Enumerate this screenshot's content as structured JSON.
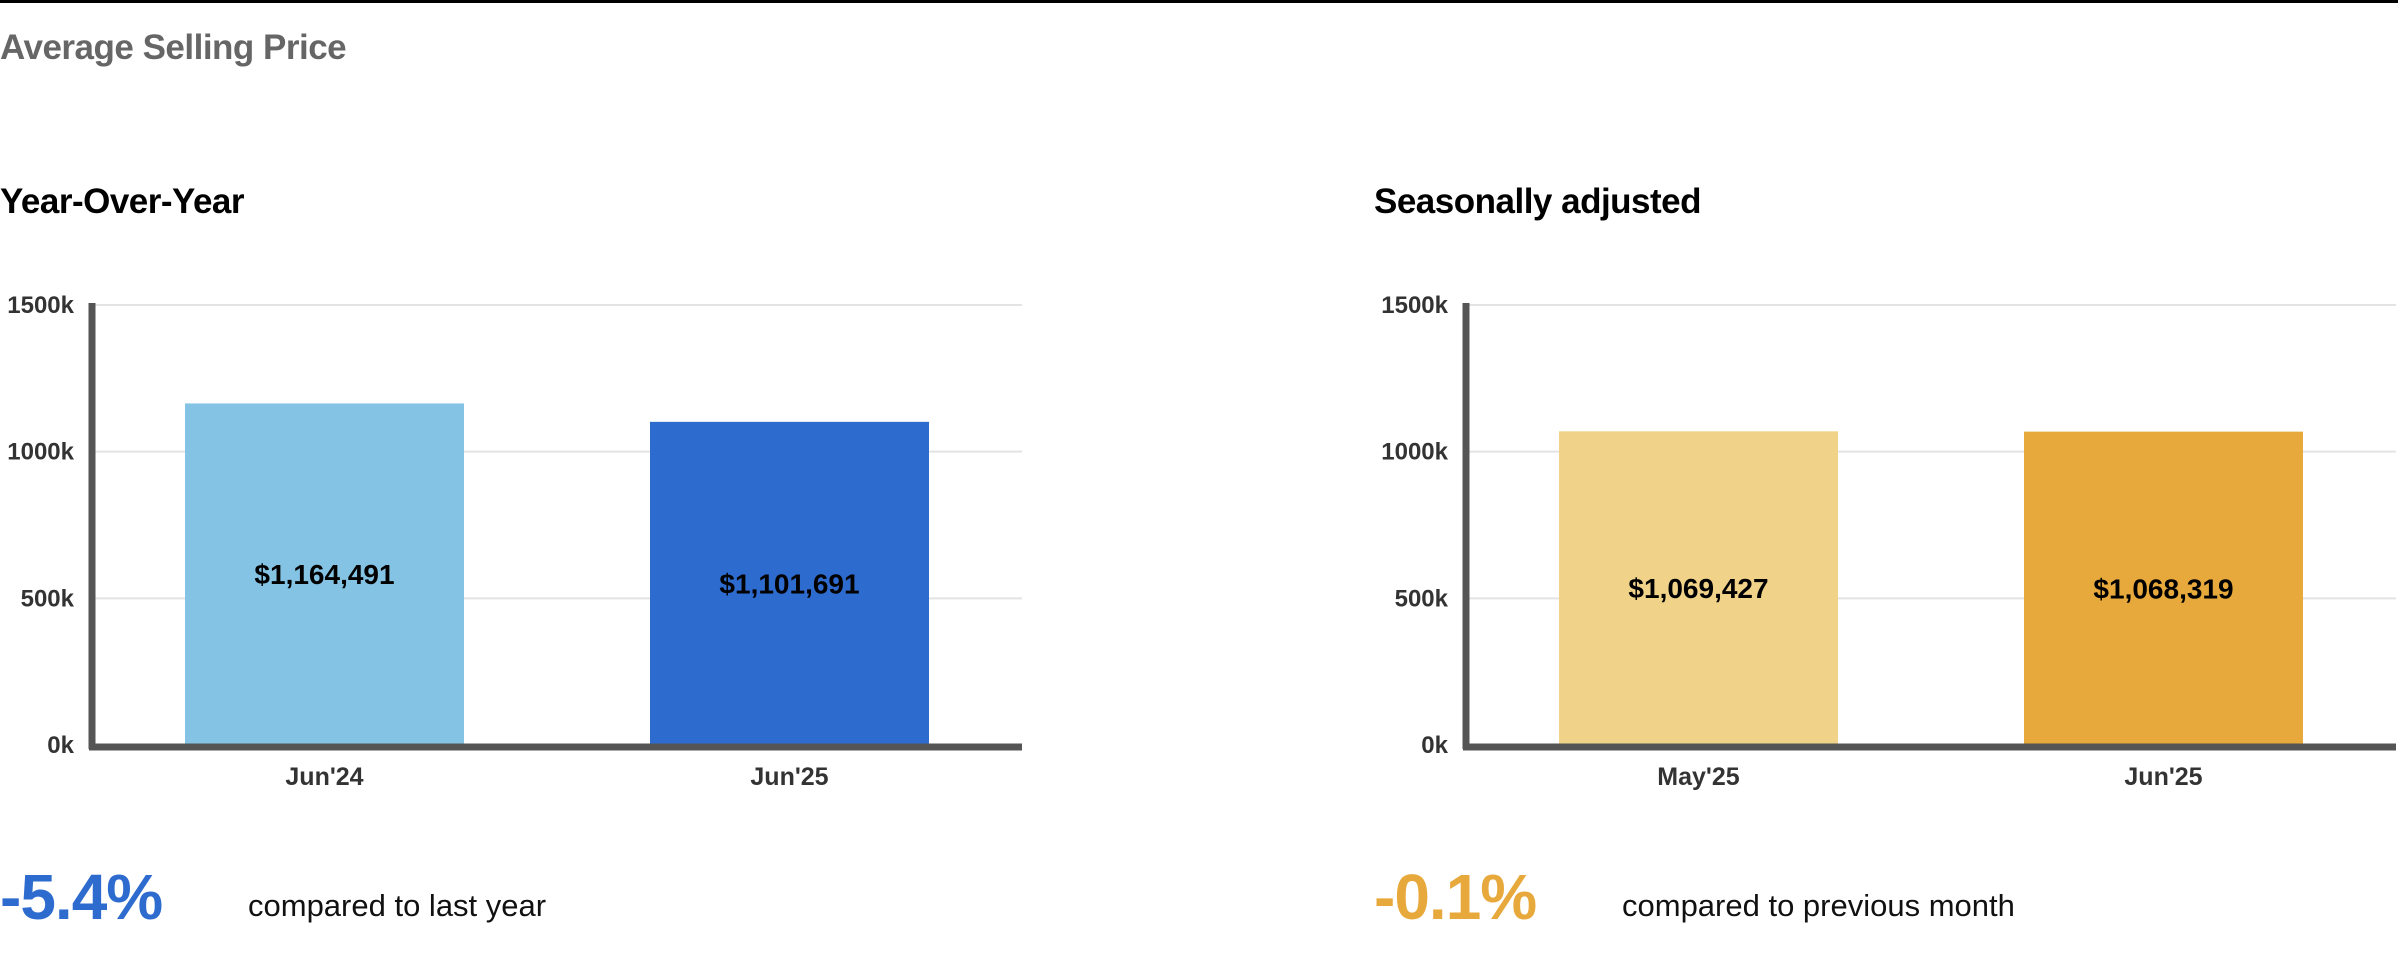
{
  "page_title": "Average Selling Price",
  "panels": [
    {
      "title": "Year-Over-Year",
      "summary": {
        "percent": "-5.4%",
        "text": "compared to last year",
        "color": "#2E6BCF"
      }
    },
    {
      "title": "Seasonally adjusted",
      "summary": {
        "percent": "-0.1%",
        "text": "compared to previous month",
        "color": "#E8A93C"
      }
    }
  ],
  "chart_data": [
    {
      "type": "bar",
      "title": "Year-Over-Year",
      "categories": [
        "Jun'24",
        "Jun'25"
      ],
      "values": [
        1164491,
        1101691
      ],
      "data_labels": [
        "$1,164,491",
        "$1,101,691"
      ],
      "colors": [
        "#85C3E5",
        "#2E6BCF"
      ],
      "ylim": [
        0,
        1500000
      ],
      "yticks": [
        0,
        500000,
        1000000,
        1500000
      ],
      "ytick_labels": [
        "0k",
        "500k",
        "1000k",
        "1500k"
      ],
      "grid": true
    },
    {
      "type": "bar",
      "title": "Seasonally adjusted",
      "categories": [
        "May'25",
        "Jun'25"
      ],
      "values": [
        1069427,
        1068319
      ],
      "data_labels": [
        "$1,069,427",
        "$1,068,319"
      ],
      "colors": [
        "#F0D389",
        "#E8A93C"
      ],
      "ylim": [
        0,
        1500000
      ],
      "yticks": [
        0,
        500000,
        1000000,
        1500000
      ],
      "ytick_labels": [
        "0k",
        "500k",
        "1000k",
        "1500k"
      ],
      "grid": true
    }
  ]
}
